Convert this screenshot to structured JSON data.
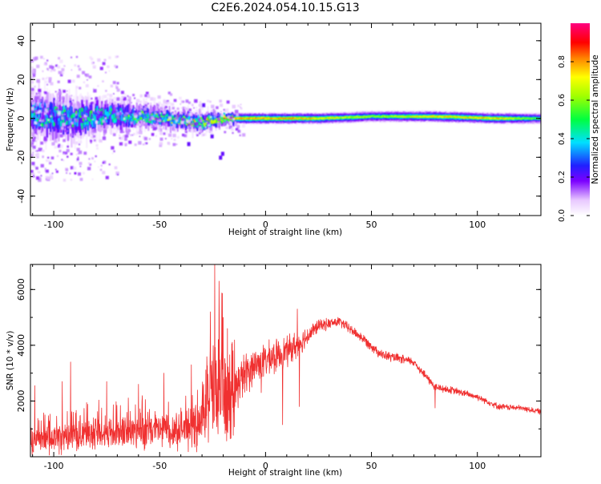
{
  "title": "C2E6.2024.054.10.15.G13",
  "chart_data": [
    {
      "type": "heatmap",
      "xlabel": "Height of straight line (km)",
      "ylabel": "Frequency (Hz)",
      "xlim": [
        -111,
        130
      ],
      "ylim": [
        -50,
        49
      ],
      "x_ticks": [
        -100,
        -50,
        0,
        50,
        100
      ],
      "x_tick_labels": [
        "-100",
        "-50",
        "0",
        "50",
        "100"
      ],
      "y_ticks": [
        -40,
        -20,
        0,
        20,
        40
      ],
      "y_tick_labels": [
        "-40",
        "-20",
        "0",
        "20",
        "40"
      ],
      "colorbar": {
        "label": "Normalized spectral amplitude",
        "range": [
          0,
          1
        ],
        "ticks": [
          0.0,
          0.2,
          0.4,
          0.6,
          0.8
        ],
        "tick_labels": [
          "0.0",
          "0.2",
          "0.4",
          "0.6",
          "0.8"
        ],
        "colormap": "rainbow-like (white, violet, blue, cyan, green, yellow, red, magenta)"
      },
      "description_points": [
        {
          "x": -110,
          "y_center": 2,
          "y_halfwidth": 12,
          "peak": 0.45
        },
        {
          "x": -90,
          "y_center": 0,
          "y_halfwidth": 10,
          "peak": 0.5
        },
        {
          "x": -70,
          "y_center": 2,
          "y_halfwidth": 7,
          "peak": 0.55
        },
        {
          "x": -50,
          "y_center": 0,
          "y_halfwidth": 5,
          "peak": 0.6
        },
        {
          "x": -30,
          "y_center": -2,
          "y_halfwidth": 5,
          "peak": 0.7
        },
        {
          "x": -18,
          "y_center": 0,
          "y_halfwidth": 3,
          "peak": 0.9
        },
        {
          "x": 0,
          "y_center": 0,
          "y_halfwidth": 3,
          "peak": 0.92
        },
        {
          "x": 25,
          "y_center": 0,
          "y_halfwidth": 3,
          "peak": 0.85
        },
        {
          "x": 50,
          "y_center": 1,
          "y_halfwidth": 3,
          "peak": 0.7
        },
        {
          "x": 80,
          "y_center": 1,
          "y_halfwidth": 3,
          "peak": 0.85
        },
        {
          "x": 110,
          "y_center": 0,
          "y_halfwidth": 3,
          "peak": 0.85
        },
        {
          "x": 130,
          "y_center": 0,
          "y_halfwidth": 3,
          "peak": 0.6
        }
      ]
    },
    {
      "type": "line",
      "xlabel": "Height of straight line (km)",
      "ylabel": "SNR (10 * v/v)",
      "xlim": [
        -111,
        130
      ],
      "ylim": [
        0,
        6900
      ],
      "x_ticks": [
        -100,
        -50,
        0,
        50,
        100
      ],
      "x_tick_labels": [
        "-100",
        "-50",
        "0",
        "50",
        "100"
      ],
      "y_ticks": [
        2000,
        4000,
        6000
      ],
      "y_tick_labels": [
        "2000",
        "4000",
        "6000"
      ],
      "color": "#f03030",
      "envelope": [
        {
          "x": -111,
          "mean": 500,
          "noise": 450
        },
        {
          "x": -100,
          "mean": 650,
          "noise": 550
        },
        {
          "x": -80,
          "mean": 850,
          "noise": 600
        },
        {
          "x": -60,
          "mean": 900,
          "noise": 650
        },
        {
          "x": -40,
          "mean": 1000,
          "noise": 700
        },
        {
          "x": -30,
          "mean": 1100,
          "noise": 800
        },
        {
          "x": -28,
          "mean": 1900,
          "noise": 1500
        },
        {
          "x": -24,
          "mean": 2400,
          "noise": 2200
        },
        {
          "x": -20,
          "mean": 2200,
          "noise": 1800
        },
        {
          "x": -16,
          "mean": 1500,
          "noise": 1400
        },
        {
          "x": -14,
          "mean": 2600,
          "noise": 900
        },
        {
          "x": -5,
          "mean": 3300,
          "noise": 650
        },
        {
          "x": 5,
          "mean": 3600,
          "noise": 600
        },
        {
          "x": 15,
          "mean": 4000,
          "noise": 500
        },
        {
          "x": 25,
          "mean": 4700,
          "noise": 220
        },
        {
          "x": 35,
          "mean": 4850,
          "noise": 180
        },
        {
          "x": 45,
          "mean": 4300,
          "noise": 180
        },
        {
          "x": 55,
          "mean": 3650,
          "noise": 180
        },
        {
          "x": 70,
          "mean": 3400,
          "noise": 150
        },
        {
          "x": 80,
          "mean": 2500,
          "noise": 150
        },
        {
          "x": 90,
          "mean": 2350,
          "noise": 130
        },
        {
          "x": 100,
          "mean": 2150,
          "noise": 120
        },
        {
          "x": 110,
          "mean": 1800,
          "noise": 110
        },
        {
          "x": 120,
          "mean": 1750,
          "noise": 100
        },
        {
          "x": 130,
          "mean": 1620,
          "noise": 100
        }
      ],
      "spikes": [
        {
          "x": -24,
          "y": 6900
        },
        {
          "x": -22,
          "y": 6300
        },
        {
          "x": -26,
          "y": 5200
        },
        {
          "x": -20,
          "y": 5000
        },
        {
          "x": -18,
          "y": 4600
        },
        {
          "x": 15,
          "y": 5300
        },
        {
          "x": -92,
          "y": 3400
        },
        {
          "x": -48,
          "y": 3000
        },
        {
          "x": -35,
          "y": 3300
        },
        {
          "x": -96,
          "y": 2700
        },
        {
          "x": -75,
          "y": 2700
        },
        {
          "x": -109,
          "y": 2550
        },
        {
          "x": -60,
          "y": 2600
        }
      ],
      "dips": [
        {
          "x": 8,
          "y": 1150
        },
        {
          "x": 16,
          "y": 1800
        },
        {
          "x": 80,
          "y": 1750
        },
        {
          "x": -2,
          "y": 2300
        }
      ]
    }
  ]
}
